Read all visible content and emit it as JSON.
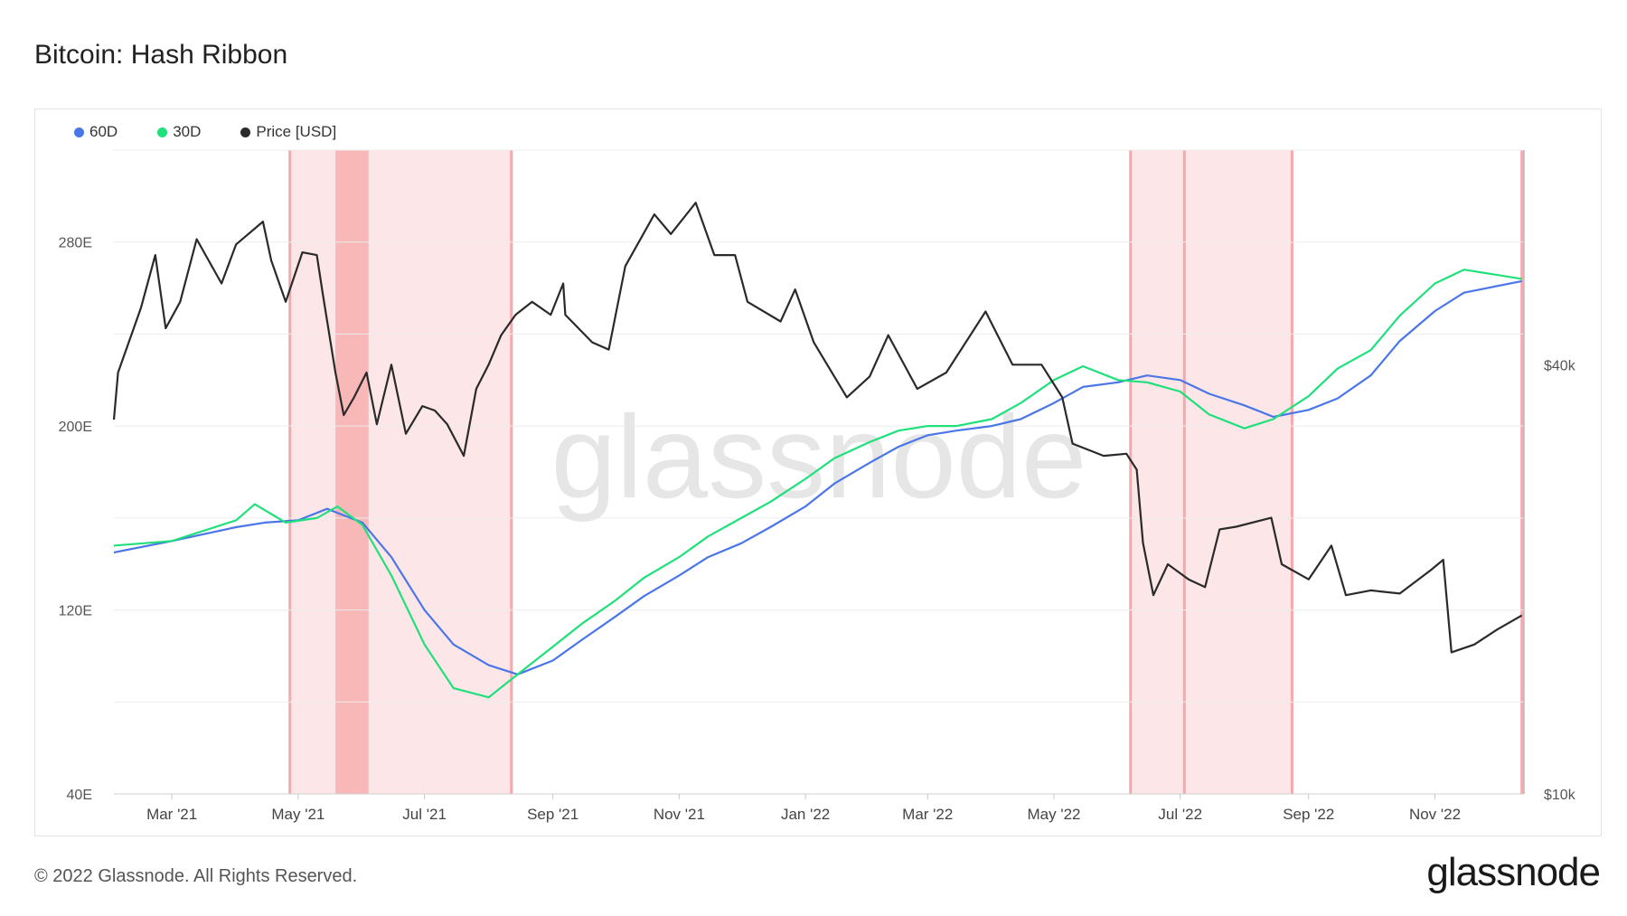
{
  "header": {
    "title": "Bitcoin: Hash Ribbon"
  },
  "footer": {
    "copyright": "© 2022 Glassnode. All Rights Reserved.",
    "brand": "glassnode"
  },
  "watermark": "glassnode",
  "colors": {
    "sma60": "#4a76e8",
    "sma30": "#1fe07a",
    "price": "#2a2a2a",
    "capitulation": "#fde6e8",
    "capitulation_dark": "#f8b8b8",
    "band_edge": "#f4a9ad"
  },
  "chart_data": {
    "type": "line",
    "legend": [
      {
        "name": "60D",
        "color": "#4a76e8"
      },
      {
        "name": "30D",
        "color": "#1fe07a"
      },
      {
        "name": "Price [USD]",
        "color": "#2a2a2a"
      }
    ],
    "legend_placement": "top-left",
    "x_range": [
      "2021-02-01",
      "2022-12-14"
    ],
    "x_ticks": [
      {
        "date": "2021-03-01",
        "label": "Mar '21"
      },
      {
        "date": "2021-05-01",
        "label": "May '21"
      },
      {
        "date": "2021-07-01",
        "label": "Jul '21"
      },
      {
        "date": "2021-09-01",
        "label": "Sep '21"
      },
      {
        "date": "2021-11-01",
        "label": "Nov '21"
      },
      {
        "date": "2022-01-01",
        "label": "Jan '22"
      },
      {
        "date": "2022-03-01",
        "label": "Mar '22"
      },
      {
        "date": "2022-05-01",
        "label": "May '22"
      },
      {
        "date": "2022-07-01",
        "label": "Jul '22"
      },
      {
        "date": "2022-09-01",
        "label": "Sep '22"
      },
      {
        "date": "2022-11-01",
        "label": "Nov '22"
      }
    ],
    "y_left": {
      "ticks": [
        {
          "v": 40,
          "label": "40E"
        },
        {
          "v": 120,
          "label": "120E"
        },
        {
          "v": 200,
          "label": "200E"
        },
        {
          "v": 280,
          "label": "280E"
        }
      ],
      "range": [
        40,
        320
      ]
    },
    "y_right": {
      "scale": "log",
      "ticks": [
        {
          "v": 10000,
          "label": "$10k"
        },
        {
          "v": 40000,
          "label": "$40k"
        }
      ],
      "range": [
        10000,
        80000
      ]
    },
    "capitulation_bands": [
      {
        "start": "2021-04-27",
        "end": "2021-08-12",
        "intensity": "light"
      },
      {
        "start": "2021-05-19",
        "end": "2021-06-04",
        "intensity": "dark"
      },
      {
        "start": "2022-06-07",
        "end": "2022-08-24",
        "intensity": "light"
      }
    ],
    "band_edges": [
      "2021-04-27",
      "2021-08-12",
      "2022-06-07",
      "2022-07-03",
      "2022-08-24",
      "2022-12-13"
    ],
    "series": [
      {
        "name": "60D",
        "axis": "left",
        "points": [
          [
            "2021-02-01",
            145
          ],
          [
            "2021-03-01",
            150
          ],
          [
            "2021-04-01",
            156
          ],
          [
            "2021-04-15",
            158
          ],
          [
            "2021-05-01",
            159
          ],
          [
            "2021-05-15",
            164
          ],
          [
            "2021-06-01",
            158
          ],
          [
            "2021-06-15",
            143
          ],
          [
            "2021-07-01",
            120
          ],
          [
            "2021-07-15",
            105
          ],
          [
            "2021-08-01",
            96
          ],
          [
            "2021-08-15",
            92
          ],
          [
            "2021-09-01",
            98
          ],
          [
            "2021-09-15",
            107
          ],
          [
            "2021-10-01",
            117
          ],
          [
            "2021-10-15",
            126
          ],
          [
            "2021-11-01",
            135
          ],
          [
            "2021-11-15",
            143
          ],
          [
            "2021-12-01",
            149
          ],
          [
            "2021-12-15",
            156
          ],
          [
            "2022-01-01",
            165
          ],
          [
            "2022-01-15",
            175
          ],
          [
            "2022-02-01",
            184
          ],
          [
            "2022-02-15",
            191
          ],
          [
            "2022-03-01",
            196
          ],
          [
            "2022-03-15",
            198
          ],
          [
            "2022-04-01",
            200
          ],
          [
            "2022-04-15",
            203
          ],
          [
            "2022-05-01",
            210
          ],
          [
            "2022-05-15",
            217
          ],
          [
            "2022-06-01",
            219
          ],
          [
            "2022-06-15",
            222
          ],
          [
            "2022-07-01",
            220
          ],
          [
            "2022-07-15",
            214
          ],
          [
            "2022-08-01",
            209
          ],
          [
            "2022-08-15",
            204
          ],
          [
            "2022-09-01",
            207
          ],
          [
            "2022-09-15",
            212
          ],
          [
            "2022-10-01",
            222
          ],
          [
            "2022-10-15",
            237
          ],
          [
            "2022-11-01",
            250
          ],
          [
            "2022-11-15",
            258
          ],
          [
            "2022-12-13",
            263
          ]
        ]
      },
      {
        "name": "30D",
        "axis": "left",
        "points": [
          [
            "2021-02-01",
            148
          ],
          [
            "2021-03-01",
            150
          ],
          [
            "2021-04-01",
            159
          ],
          [
            "2021-04-10",
            166
          ],
          [
            "2021-04-25",
            158
          ],
          [
            "2021-05-10",
            160
          ],
          [
            "2021-05-20",
            165
          ],
          [
            "2021-06-01",
            157
          ],
          [
            "2021-06-15",
            135
          ],
          [
            "2021-07-01",
            105
          ],
          [
            "2021-07-15",
            86
          ],
          [
            "2021-08-01",
            82
          ],
          [
            "2021-08-15",
            92
          ],
          [
            "2021-09-01",
            104
          ],
          [
            "2021-09-15",
            114
          ],
          [
            "2021-10-01",
            124
          ],
          [
            "2021-10-15",
            134
          ],
          [
            "2021-11-01",
            143
          ],
          [
            "2021-11-15",
            152
          ],
          [
            "2021-12-01",
            160
          ],
          [
            "2021-12-15",
            167
          ],
          [
            "2022-01-01",
            177
          ],
          [
            "2022-01-15",
            186
          ],
          [
            "2022-02-01",
            193
          ],
          [
            "2022-02-15",
            198
          ],
          [
            "2022-03-01",
            200
          ],
          [
            "2022-03-15",
            200
          ],
          [
            "2022-04-01",
            203
          ],
          [
            "2022-04-15",
            210
          ],
          [
            "2022-05-01",
            220
          ],
          [
            "2022-05-15",
            226
          ],
          [
            "2022-06-01",
            220
          ],
          [
            "2022-06-15",
            219
          ],
          [
            "2022-07-01",
            215
          ],
          [
            "2022-07-15",
            205
          ],
          [
            "2022-08-01",
            199
          ],
          [
            "2022-08-15",
            203
          ],
          [
            "2022-09-01",
            213
          ],
          [
            "2022-09-15",
            225
          ],
          [
            "2022-10-01",
            233
          ],
          [
            "2022-10-15",
            248
          ],
          [
            "2022-11-01",
            262
          ],
          [
            "2022-11-15",
            268
          ],
          [
            "2022-12-13",
            264
          ]
        ]
      },
      {
        "name": "Price [USD]",
        "axis": "right",
        "points": [
          [
            "2021-02-01",
            33500
          ],
          [
            "2021-02-03",
            39000
          ],
          [
            "2021-02-14",
            48000
          ],
          [
            "2021-02-21",
            57000
          ],
          [
            "2021-02-26",
            45000
          ],
          [
            "2021-03-05",
            49000
          ],
          [
            "2021-03-13",
            60000
          ],
          [
            "2021-03-25",
            52000
          ],
          [
            "2021-04-01",
            59000
          ],
          [
            "2021-04-14",
            63500
          ],
          [
            "2021-04-18",
            56000
          ],
          [
            "2021-04-25",
            49000
          ],
          [
            "2021-05-03",
            57500
          ],
          [
            "2021-05-10",
            57000
          ],
          [
            "2021-05-13",
            50000
          ],
          [
            "2021-05-19",
            39000
          ],
          [
            "2021-05-23",
            34000
          ],
          [
            "2021-05-28",
            36000
          ],
          [
            "2021-06-03",
            39000
          ],
          [
            "2021-06-08",
            33000
          ],
          [
            "2021-06-15",
            40000
          ],
          [
            "2021-06-22",
            32000
          ],
          [
            "2021-06-30",
            35000
          ],
          [
            "2021-07-06",
            34500
          ],
          [
            "2021-07-12",
            33000
          ],
          [
            "2021-07-20",
            29800
          ],
          [
            "2021-07-26",
            37000
          ],
          [
            "2021-08-01",
            40000
          ],
          [
            "2021-08-07",
            44000
          ],
          [
            "2021-08-14",
            47000
          ],
          [
            "2021-08-22",
            49000
          ],
          [
            "2021-08-31",
            47000
          ],
          [
            "2021-09-06",
            52000
          ],
          [
            "2021-09-07",
            47000
          ],
          [
            "2021-09-20",
            43000
          ],
          [
            "2021-09-28",
            42000
          ],
          [
            "2021-10-06",
            55000
          ],
          [
            "2021-10-20",
            65000
          ],
          [
            "2021-10-28",
            61000
          ],
          [
            "2021-11-09",
            67500
          ],
          [
            "2021-11-18",
            57000
          ],
          [
            "2021-11-28",
            57000
          ],
          [
            "2021-12-04",
            49000
          ],
          [
            "2021-12-20",
            46000
          ],
          [
            "2021-12-27",
            51000
          ],
          [
            "2022-01-05",
            43000
          ],
          [
            "2022-01-21",
            36000
          ],
          [
            "2022-02-01",
            38500
          ],
          [
            "2022-02-10",
            44000
          ],
          [
            "2022-02-24",
            37000
          ],
          [
            "2022-03-10",
            39000
          ],
          [
            "2022-03-29",
            47500
          ],
          [
            "2022-04-11",
            40000
          ],
          [
            "2022-04-25",
            40000
          ],
          [
            "2022-05-05",
            36000
          ],
          [
            "2022-05-10",
            31000
          ],
          [
            "2022-05-25",
            29800
          ],
          [
            "2022-06-05",
            30000
          ],
          [
            "2022-06-10",
            28500
          ],
          [
            "2022-06-13",
            22500
          ],
          [
            "2022-06-18",
            19000
          ],
          [
            "2022-06-25",
            21000
          ],
          [
            "2022-07-05",
            20000
          ],
          [
            "2022-07-13",
            19500
          ],
          [
            "2022-07-20",
            23500
          ],
          [
            "2022-07-28",
            23700
          ],
          [
            "2022-08-14",
            24400
          ],
          [
            "2022-08-19",
            21000
          ],
          [
            "2022-09-01",
            20000
          ],
          [
            "2022-09-12",
            22300
          ],
          [
            "2022-09-19",
            19000
          ],
          [
            "2022-10-01",
            19300
          ],
          [
            "2022-10-15",
            19100
          ],
          [
            "2022-10-30",
            20600
          ],
          [
            "2022-11-05",
            21300
          ],
          [
            "2022-11-09",
            15800
          ],
          [
            "2022-11-20",
            16200
          ],
          [
            "2022-12-01",
            17000
          ],
          [
            "2022-12-13",
            17800
          ]
        ]
      }
    ]
  }
}
